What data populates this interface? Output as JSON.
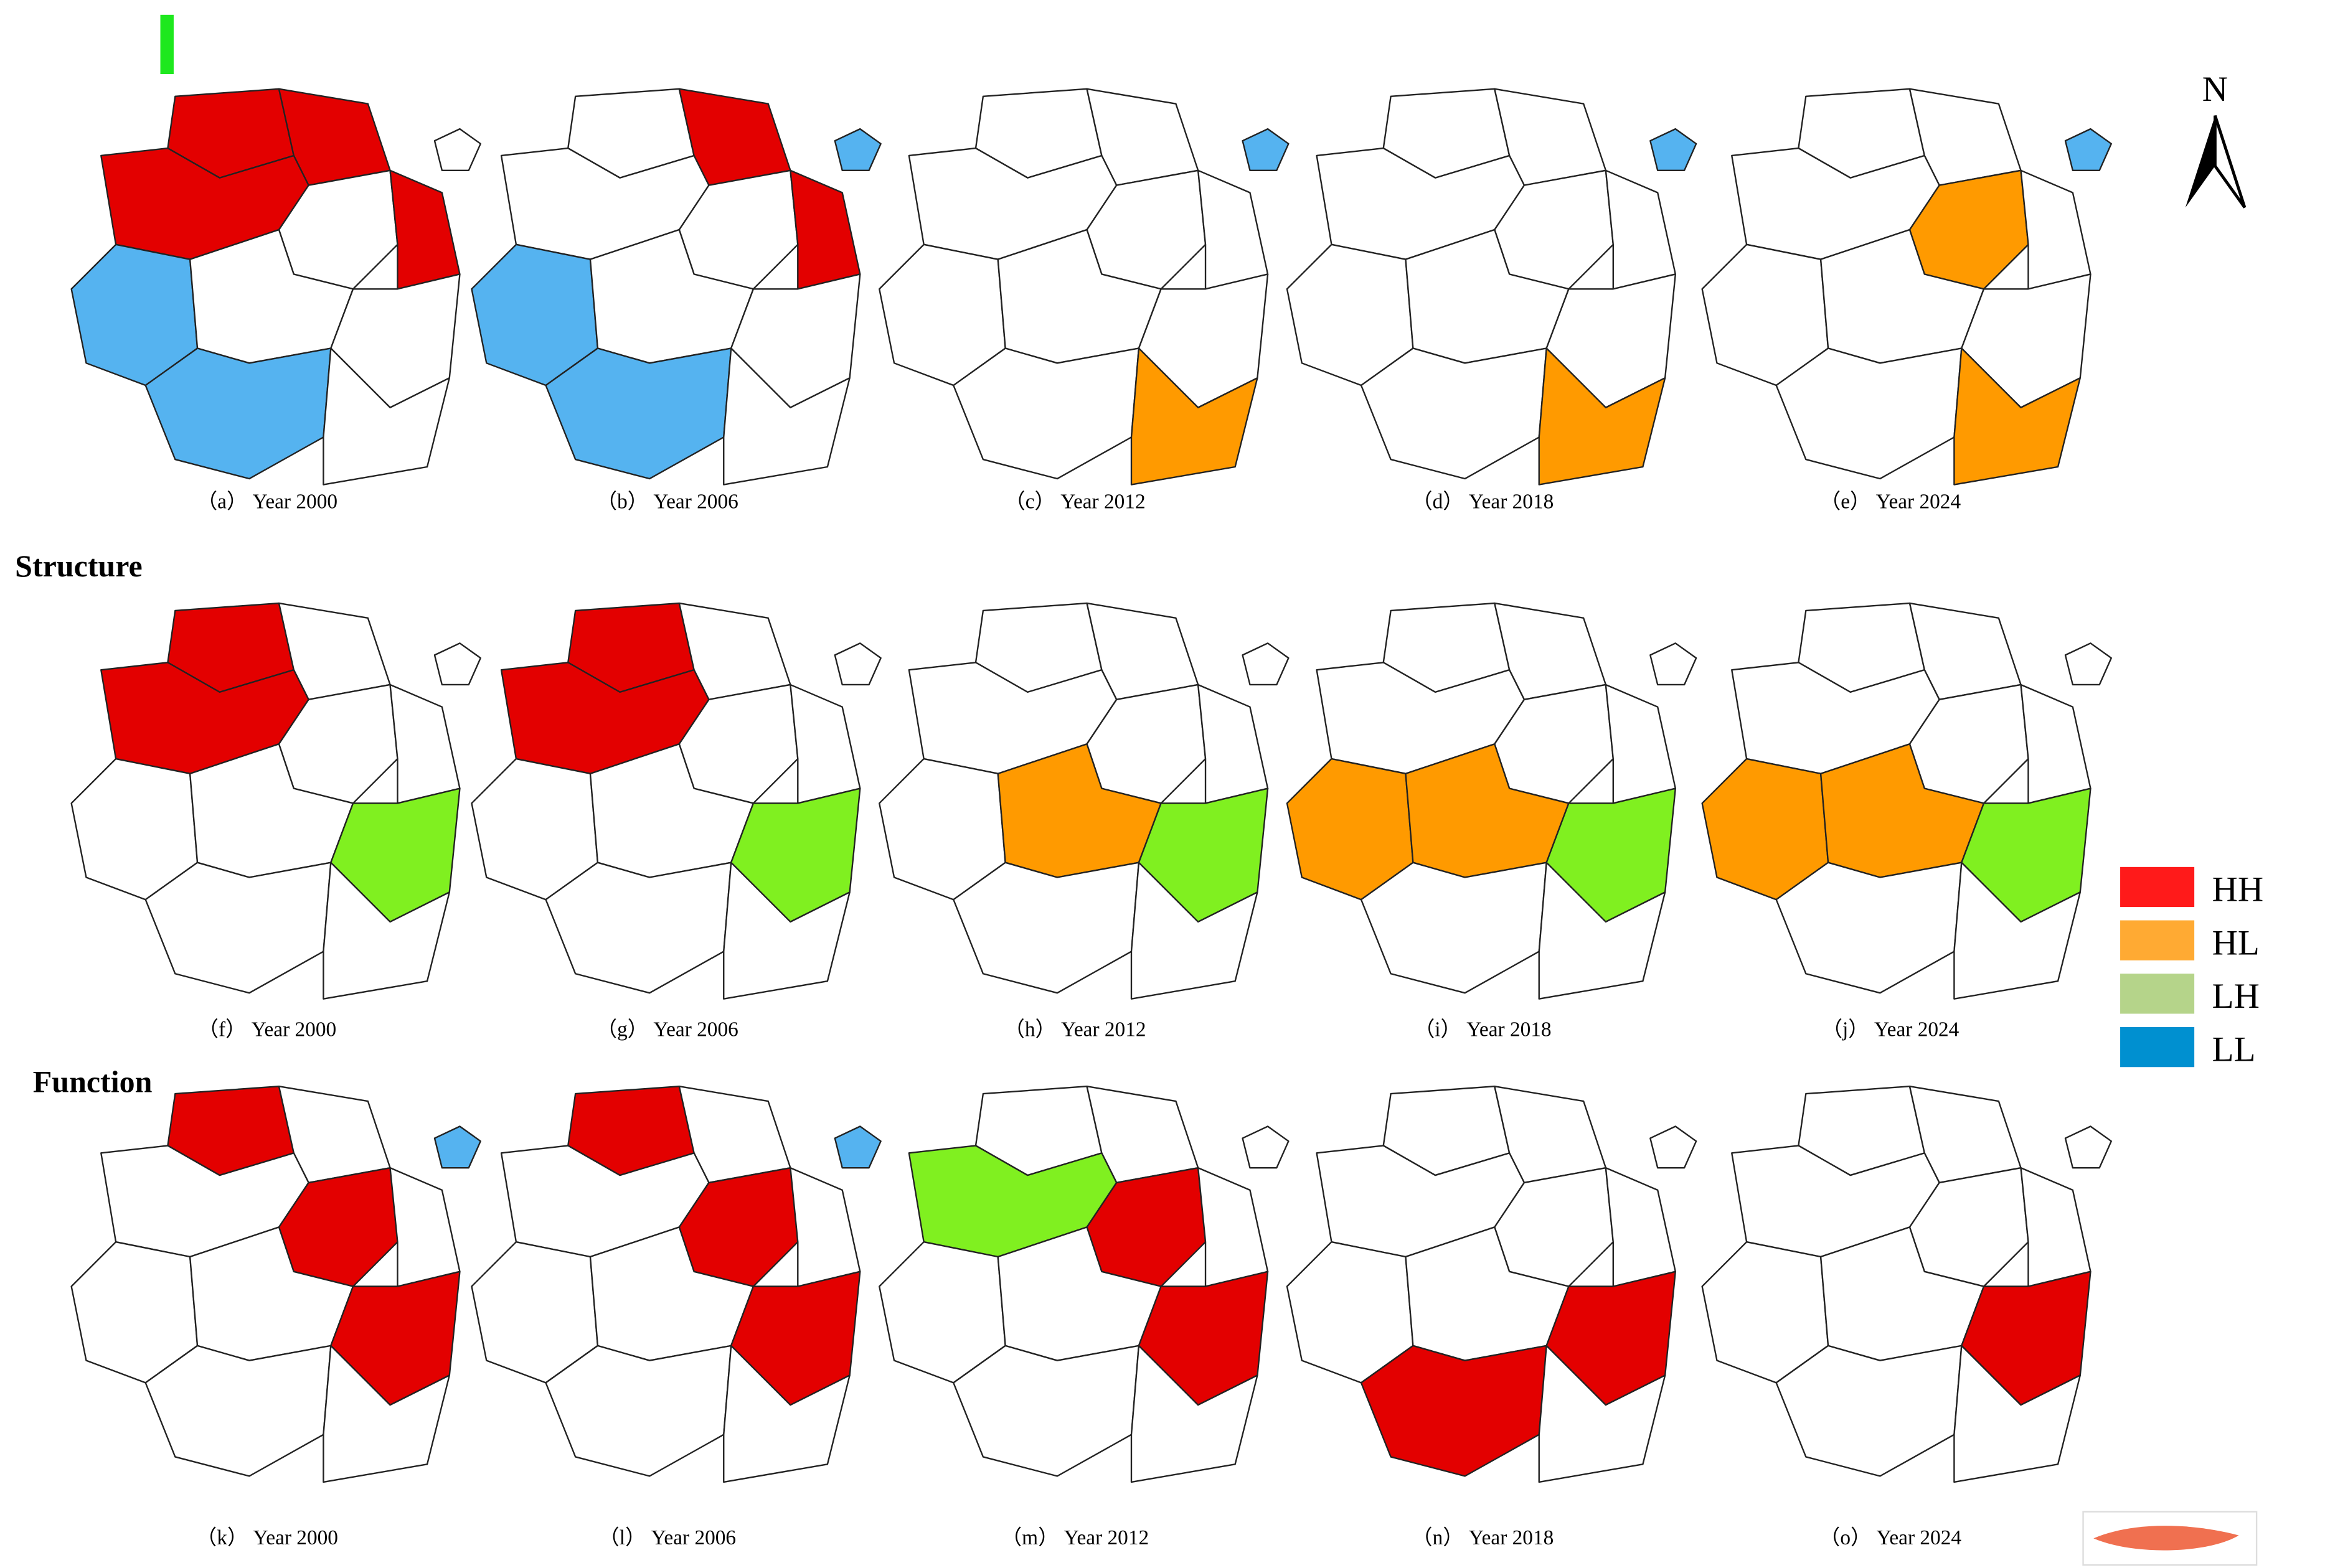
{
  "row_labels": [
    "Structure",
    "Function"
  ],
  "north": "N",
  "legend": [
    {
      "label": "HH",
      "color": "#ff1a1a",
      "map_color": "#e30000"
    },
    {
      "label": "HL",
      "color": "#ffaa33",
      "map_color": "#ff9a00"
    },
    {
      "label": "LH",
      "color": "#b5d48a",
      "map_color": "#80f020"
    },
    {
      "label": "LL",
      "color": "#0090d0",
      "map_color": "#55b3f0"
    }
  ],
  "panels": [
    {
      "caption": "（a） Year 2000",
      "classes": [
        "HH",
        "HH",
        "HH",
        null,
        "HH",
        null,
        "LL",
        null,
        null,
        "LL",
        null
      ]
    },
    {
      "caption": "（b） Year 2006",
      "classes": [
        null,
        "HH",
        null,
        null,
        "HH",
        "LL",
        "LL",
        null,
        null,
        "LL",
        null
      ]
    },
    {
      "caption": "（c） Year 2012",
      "classes": [
        null,
        null,
        null,
        null,
        null,
        "LL",
        null,
        null,
        null,
        null,
        "HL"
      ]
    },
    {
      "caption": "（d） Year 2018",
      "classes": [
        null,
        null,
        null,
        null,
        null,
        "LL",
        null,
        null,
        null,
        null,
        "HL"
      ]
    },
    {
      "caption": "（e） Year 2024",
      "classes": [
        null,
        null,
        null,
        "HL",
        null,
        "LL",
        null,
        null,
        null,
        null,
        "HL"
      ]
    },
    {
      "caption": "（f） Year 2000",
      "classes": [
        "HH",
        null,
        "HH",
        null,
        null,
        null,
        null,
        null,
        "LH",
        null,
        null
      ]
    },
    {
      "caption": "（g） Year 2006",
      "classes": [
        "HH",
        null,
        "HH",
        null,
        null,
        null,
        null,
        null,
        "LH",
        null,
        null
      ]
    },
    {
      "caption": "（h） Year 2012",
      "classes": [
        null,
        null,
        null,
        null,
        null,
        null,
        null,
        "HL",
        "LH",
        null,
        null
      ]
    },
    {
      "caption": "（i） Year 2018",
      "classes": [
        null,
        null,
        null,
        null,
        null,
        null,
        "HL",
        "HL",
        "LH",
        null,
        null
      ]
    },
    {
      "caption": "（j） Year 2024",
      "classes": [
        null,
        null,
        null,
        null,
        null,
        null,
        "HL",
        "HL",
        "LH",
        null,
        null
      ]
    },
    {
      "caption": "（k） Year 2000",
      "classes": [
        "HH",
        null,
        null,
        "HH",
        null,
        "LL",
        null,
        null,
        "HH",
        null,
        null
      ]
    },
    {
      "caption": "（l） Year 2006",
      "classes": [
        "HH",
        null,
        null,
        "HH",
        null,
        "LL",
        null,
        null,
        "HH",
        null,
        null
      ]
    },
    {
      "caption": "（m） Year 2012",
      "classes": [
        null,
        null,
        "LH",
        "HH",
        null,
        null,
        null,
        null,
        "HH",
        null,
        null
      ]
    },
    {
      "caption": "（n） Year 2018",
      "classes": [
        null,
        null,
        null,
        null,
        null,
        null,
        null,
        null,
        "HH",
        "HH",
        null
      ]
    },
    {
      "caption": "（o） Year 2024",
      "classes": [
        null,
        null,
        null,
        null,
        null,
        null,
        null,
        null,
        "HH",
        null,
        null
      ]
    }
  ]
}
